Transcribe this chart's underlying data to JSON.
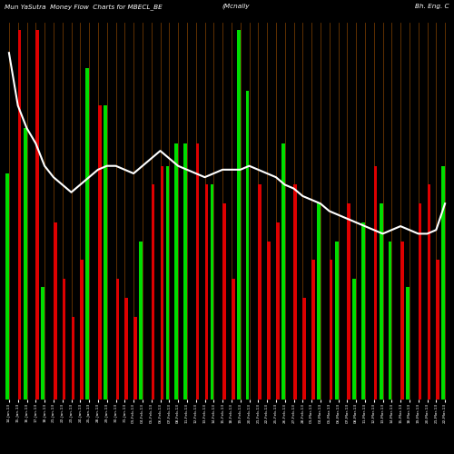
{
  "title_left": "Mun YaSutra  Money Flow  Charts for MBECL_BE",
  "title_center": "(Mcnally",
  "title_right": "Bh. Eng. C",
  "background_color": "#000000",
  "line_color": "#ffffff",
  "grid_color": "#8B4500",
  "categories": [
    "14-Jan-13",
    "15-Jan-13",
    "16-Jan-13",
    "17-Jan-13",
    "18-Jan-13",
    "21-Jan-13",
    "22-Jan-13",
    "23-Jan-13",
    "24-Jan-13",
    "25-Jan-13",
    "28-Jan-13",
    "29-Jan-13",
    "30-Jan-13",
    "31-Jan-13",
    "01-Feb-13",
    "04-Feb-13",
    "05-Feb-13",
    "06-Feb-13",
    "07-Feb-13",
    "08-Feb-13",
    "11-Feb-13",
    "12-Feb-13",
    "13-Feb-13",
    "14-Feb-13",
    "15-Feb-13",
    "18-Feb-13",
    "19-Feb-13",
    "20-Feb-13",
    "21-Feb-13",
    "22-Feb-13",
    "25-Feb-13",
    "26-Feb-13",
    "27-Feb-13",
    "28-Feb-13",
    "01-Mar-13",
    "04-Mar-13",
    "05-Mar-13",
    "06-Mar-13",
    "07-Mar-13",
    "08-Mar-13",
    "11-Mar-13",
    "12-Mar-13",
    "13-Mar-13",
    "14-Mar-13",
    "15-Mar-13",
    "18-Mar-13",
    "19-Mar-13",
    "20-Mar-13",
    "21-Mar-13",
    "22-Mar-13"
  ],
  "inflow": [
    60,
    0,
    72,
    0,
    30,
    0,
    0,
    0,
    0,
    0,
    0,
    0,
    0,
    0,
    0,
    0,
    0,
    0,
    0,
    0,
    0,
    0,
    0,
    0,
    0,
    0,
    98,
    82,
    0,
    0,
    0,
    0,
    0,
    0,
    0,
    0,
    0,
    0,
    0,
    0,
    0,
    0,
    0,
    0,
    0,
    30,
    0,
    0,
    0,
    62
  ],
  "outflow": [
    0,
    98,
    0,
    98,
    0,
    0,
    0,
    0,
    0,
    0,
    0,
    0,
    0,
    0,
    0,
    0,
    0,
    0,
    0,
    0,
    0,
    0,
    0,
    0,
    0,
    0,
    0,
    0,
    0,
    0,
    0,
    0,
    0,
    0,
    0,
    0,
    0,
    0,
    0,
    0,
    0,
    0,
    0,
    0,
    0,
    0,
    0,
    0,
    0,
    0
  ],
  "inflow_full": [
    60,
    0,
    72,
    0,
    30,
    0,
    0,
    0,
    0,
    88,
    0,
    78,
    0,
    0,
    0,
    42,
    0,
    0,
    62,
    68,
    68,
    0,
    0,
    57,
    0,
    0,
    98,
    82,
    0,
    0,
    0,
    68,
    0,
    0,
    0,
    52,
    0,
    42,
    0,
    32,
    47,
    0,
    52,
    42,
    0,
    30,
    0,
    0,
    0,
    62
  ],
  "outflow_full": [
    0,
    98,
    0,
    98,
    0,
    47,
    32,
    22,
    37,
    0,
    78,
    0,
    32,
    27,
    22,
    0,
    57,
    62,
    0,
    0,
    0,
    68,
    57,
    0,
    52,
    32,
    0,
    0,
    57,
    42,
    47,
    0,
    57,
    27,
    37,
    0,
    37,
    0,
    52,
    0,
    0,
    62,
    0,
    0,
    42,
    0,
    52,
    57,
    37,
    0
  ],
  "line_values": [
    92,
    78,
    72,
    68,
    62,
    59,
    57,
    55,
    57,
    59,
    61,
    62,
    62,
    61,
    60,
    62,
    64,
    66,
    64,
    62,
    61,
    60,
    59,
    60,
    61,
    61,
    61,
    62,
    61,
    60,
    59,
    57,
    56,
    54,
    53,
    52,
    50,
    49,
    48,
    47,
    46,
    45,
    44,
    45,
    46,
    45,
    44,
    44,
    45,
    52
  ]
}
